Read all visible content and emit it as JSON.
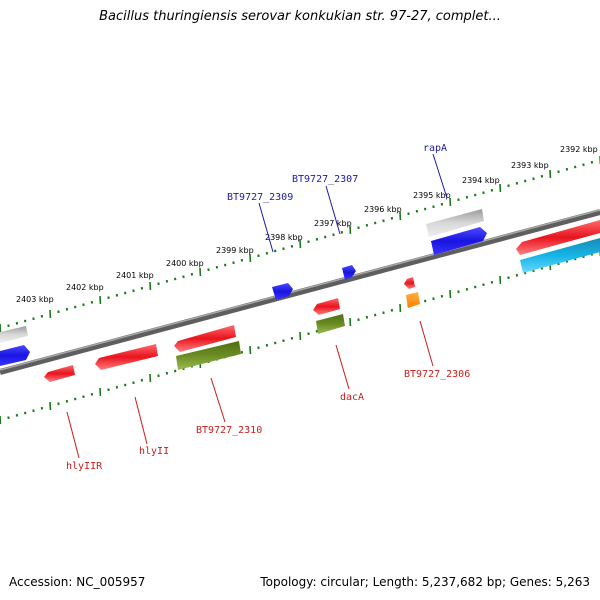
{
  "title": "Bacillus thuringiensis serovar konkukian str. 97-27, complet...",
  "footer": {
    "accession": "Accession: NC_005957",
    "summary": "Topology: circular; Length: 5,237,682 bp; Genes: 5,263"
  },
  "colors": {
    "backbone": "#7a7a7a",
    "tick": "#1a7a1a",
    "forward_label": "#1a1aa8",
    "reverse_label": "#cc1a1a",
    "red_gene": "#e8141e",
    "blue_gene": "#1a14e0",
    "grey_gene": "#b4b4b4",
    "olive_gene": "#6b8c23",
    "cyan_gene": "#14b4e6",
    "orange_gene": "#ff8c00"
  },
  "scale": {
    "unit": "kbp",
    "labels": [
      "2403 kbp",
      "2402 kbp",
      "2401 kbp",
      "2400 kbp",
      "2399 kbp",
      "2398 kbp",
      "2397 kbp",
      "2396 kbp",
      "2395 kbp",
      "2394 kbp",
      "2393 kbp",
      "2392 kbp"
    ]
  },
  "gene_labels": {
    "forward": [
      "BT9727_2309",
      "BT9727_2307",
      "rapA"
    ],
    "reverse": [
      "hlyIIR",
      "hlyII",
      "BT9727_2310",
      "dacA",
      "BT9727_2306"
    ]
  }
}
